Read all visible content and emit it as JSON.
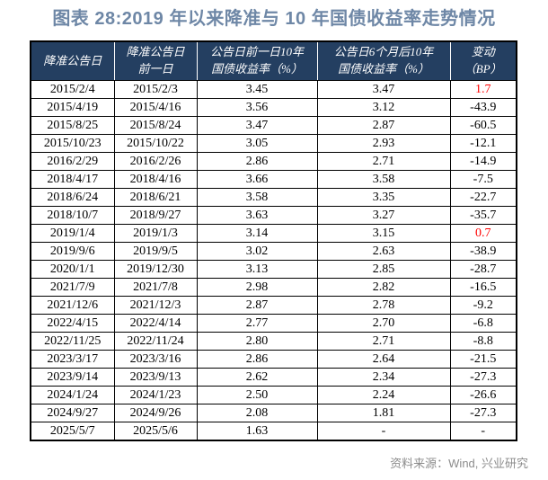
{
  "title": "图表 28:2019 年以来降准与 10 年国债收益率走势情况",
  "table": {
    "headers": [
      "降准公告日",
      "降准公告日\n前一日",
      "公告日前一日10年\n国债收益率（%）",
      "公告日6个月后10年\n国债收益率（%）",
      "变动\n（BP）"
    ],
    "rows": [
      [
        "2015/2/4",
        "2015/2/3",
        "3.45",
        "3.47",
        "1.7"
      ],
      [
        "2015/4/19",
        "2015/4/16",
        "3.56",
        "3.12",
        "-43.9"
      ],
      [
        "2015/8/25",
        "2015/8/24",
        "3.47",
        "2.87",
        "-60.5"
      ],
      [
        "2015/10/23",
        "2015/10/22",
        "3.05",
        "2.93",
        "-12.1"
      ],
      [
        "2016/2/29",
        "2016/2/26",
        "2.86",
        "2.71",
        "-14.9"
      ],
      [
        "2018/4/17",
        "2018/4/16",
        "3.66",
        "3.58",
        "-7.5"
      ],
      [
        "2018/6/24",
        "2018/6/21",
        "3.58",
        "3.35",
        "-22.7"
      ],
      [
        "2018/10/7",
        "2018/9/27",
        "3.63",
        "3.27",
        "-35.7"
      ],
      [
        "2019/1/4",
        "2019/1/3",
        "3.14",
        "3.15",
        "0.7"
      ],
      [
        "2019/9/6",
        "2019/9/5",
        "3.02",
        "2.63",
        "-38.9"
      ],
      [
        "2020/1/1",
        "2019/12/30",
        "3.13",
        "2.85",
        "-28.7"
      ],
      [
        "2021/7/9",
        "2021/7/8",
        "2.98",
        "2.82",
        "-16.5"
      ],
      [
        "2021/12/6",
        "2021/12/3",
        "2.87",
        "2.78",
        "-9.2"
      ],
      [
        "2022/4/15",
        "2022/4/14",
        "2.77",
        "2.70",
        "-6.8"
      ],
      [
        "2022/11/25",
        "2022/11/24",
        "2.80",
        "2.71",
        "-8.8"
      ],
      [
        "2023/3/17",
        "2023/3/16",
        "2.86",
        "2.64",
        "-21.5"
      ],
      [
        "2023/9/14",
        "2023/9/13",
        "2.62",
        "2.34",
        "-27.3"
      ],
      [
        "2024/1/24",
        "2024/1/23",
        "2.50",
        "2.24",
        "-26.6"
      ],
      [
        "2024/9/27",
        "2024/9/26",
        "2.08",
        "1.81",
        "-27.3"
      ],
      [
        "2025/5/7",
        "2025/5/6",
        "1.63",
        "-",
        "-"
      ]
    ]
  },
  "footer": {
    "source": "资料来源：Wind, 兴业研究"
  },
  "colors": {
    "title": "#6E87A6",
    "header_bg": "#243F61",
    "header_text": "#FFFFFF",
    "body_text": "#000000",
    "positive_change": "#FF0000",
    "source_text": "#8C8C8C"
  }
}
